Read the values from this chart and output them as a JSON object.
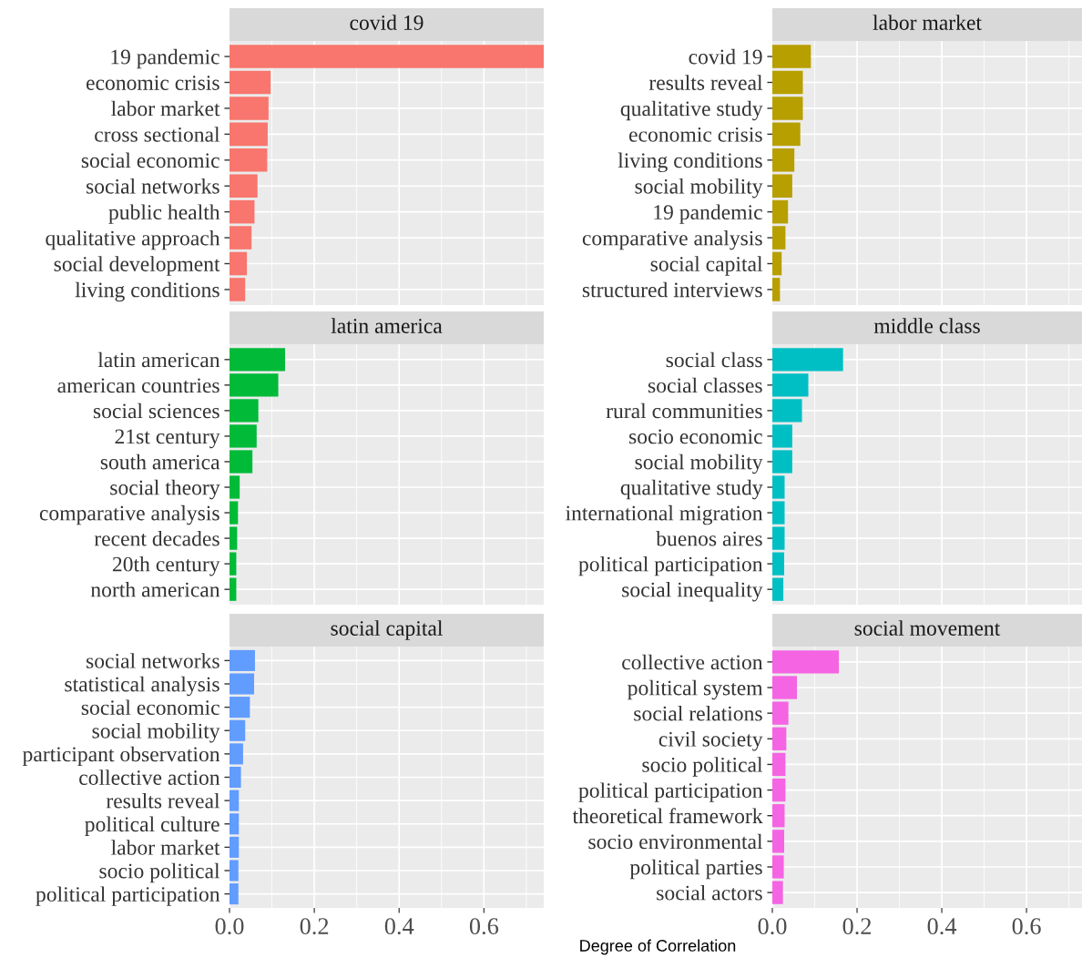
{
  "chart_data": [
    {
      "type": "bar",
      "orientation": "horizontal",
      "title": "covid 19",
      "tick_labels": "y",
      "grid": true,
      "xlim": [
        0,
        0.741
      ],
      "xticks": [
        0.2,
        0.4,
        0.6
      ],
      "categories": [
        "19 pandemic",
        "economic crisis",
        "labor market",
        "cross sectional",
        "social economic",
        "social networks",
        "public health",
        "qualitative approach",
        "social development",
        "living conditions"
      ],
      "values": [
        0.741,
        0.097,
        0.092,
        0.09,
        0.089,
        0.066,
        0.059,
        0.052,
        0.041,
        0.037
      ],
      "color": "#f8766d"
    },
    {
      "type": "bar",
      "orientation": "horizontal",
      "title": "labor market",
      "tick_labels": "y",
      "grid": true,
      "xlim": [
        0,
        0.731
      ],
      "xticks": [
        0.2,
        0.4,
        0.6
      ],
      "categories": [
        "covid 19",
        "results reveal",
        "qualitative study",
        "economic crisis",
        "living conditions",
        "social mobility",
        "19 pandemic",
        "comparative analysis",
        "social capital",
        "structured interviews"
      ],
      "values": [
        0.091,
        0.072,
        0.072,
        0.066,
        0.052,
        0.047,
        0.037,
        0.031,
        0.022,
        0.018
      ],
      "color": "#b79f00"
    },
    {
      "type": "bar",
      "orientation": "horizontal",
      "title": "latin america",
      "tick_labels": "y",
      "grid": true,
      "xlim": [
        0,
        0.741
      ],
      "xticks": [
        0.2,
        0.4,
        0.6
      ],
      "categories": [
        "latin american",
        "american countries",
        "social sciences",
        "21st century",
        "south america",
        "social theory",
        "comparative analysis",
        "recent decades",
        "20th century",
        "north american"
      ],
      "values": [
        0.131,
        0.115,
        0.068,
        0.064,
        0.054,
        0.024,
        0.02,
        0.018,
        0.016,
        0.016
      ],
      "color": "#00ba38"
    },
    {
      "type": "bar",
      "orientation": "horizontal",
      "title": "middle class",
      "tick_labels": "y",
      "grid": true,
      "xlim": [
        0,
        0.731
      ],
      "xticks": [
        0.2,
        0.4,
        0.6
      ],
      "categories": [
        "social class",
        "social classes",
        "rural communities",
        "socio economic",
        "social mobility",
        "qualitative study",
        "international migration",
        "buenos aires",
        "political participation",
        "social inequality"
      ],
      "values": [
        0.167,
        0.085,
        0.07,
        0.047,
        0.047,
        0.029,
        0.029,
        0.029,
        0.028,
        0.026
      ],
      "color": "#00bfc4"
    },
    {
      "type": "bar",
      "orientation": "horizontal",
      "title": "social capital",
      "grid": true,
      "xlim": [
        0,
        0.741
      ],
      "xticks": [
        {
          "value": 0,
          "label": "0.0"
        },
        0.2,
        0.4,
        0.6
      ],
      "categories": [
        "social networks",
        "statistical analysis",
        "social economic",
        "social mobility",
        "participant observation",
        "collective action",
        "results reveal",
        "political culture",
        "labor market",
        "socio political",
        "political participation"
      ],
      "values": [
        0.06,
        0.058,
        0.048,
        0.037,
        0.032,
        0.027,
        0.022,
        0.022,
        0.022,
        0.021,
        0.021
      ],
      "color": "#619cff"
    },
    {
      "type": "bar",
      "orientation": "horizontal",
      "title": "social movement",
      "xlabel": "Degree of Correlation",
      "grid": true,
      "xlim": [
        0,
        0.731
      ],
      "xticks": [
        {
          "value": 0,
          "label": "0.0"
        },
        0.2,
        0.4,
        0.6
      ],
      "categories": [
        "collective action",
        "political system",
        "social relations",
        "civil society",
        "socio political",
        "political participation",
        "theoretical framework",
        "socio environmental",
        "political parties",
        "social actors"
      ],
      "values": [
        0.157,
        0.058,
        0.038,
        0.033,
        0.031,
        0.031,
        0.029,
        0.028,
        0.027,
        0.025
      ],
      "color": "#f564e3"
    }
  ]
}
